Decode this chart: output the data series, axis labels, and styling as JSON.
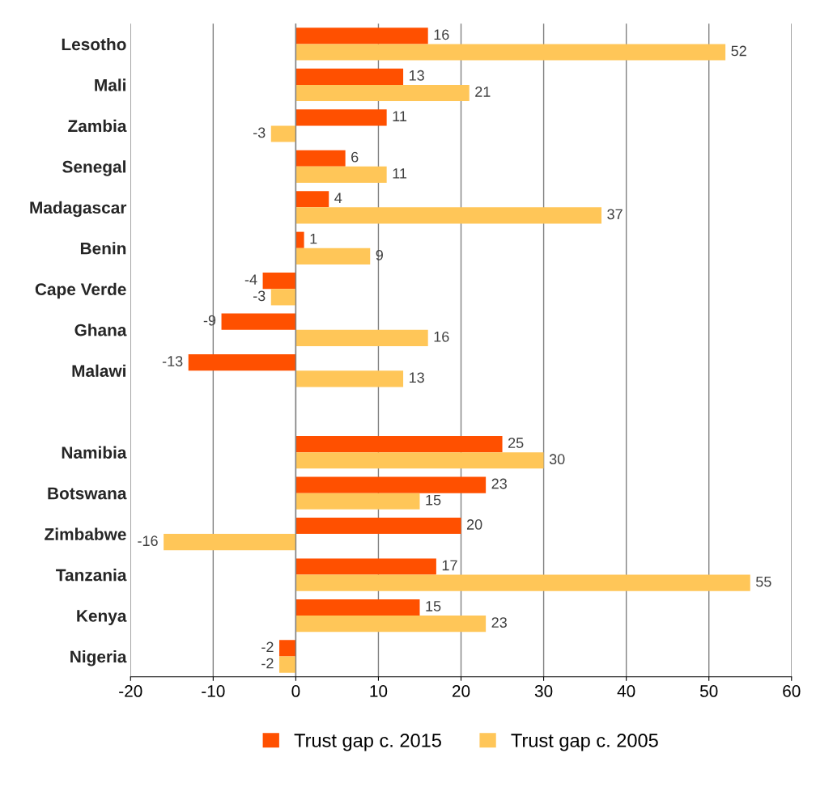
{
  "chart_data": {
    "type": "bar",
    "orientation": "horizontal",
    "categories": [
      "Lesotho",
      "Mali",
      "Zambia",
      "Senegal",
      "Madagascar",
      "Benin",
      "Cape Verde",
      "Ghana",
      "Malawi",
      null,
      "Namibia",
      "Botswana",
      "Zimbabwe",
      "Tanzania",
      "Kenya",
      "Nigeria"
    ],
    "series": [
      {
        "name": "Trust gap c. 2015",
        "color": "#ff5000",
        "values": [
          16,
          13,
          11,
          6,
          4,
          1,
          -4,
          -9,
          -13,
          null,
          25,
          23,
          20,
          17,
          15,
          -2
        ]
      },
      {
        "name": "Trust gap c. 2005",
        "color": "#ffc658",
        "values": [
          52,
          21,
          -3,
          11,
          37,
          9,
          -3,
          16,
          13,
          null,
          30,
          15,
          -16,
          55,
          23,
          -2
        ]
      }
    ],
    "xlim": [
      -20,
      60
    ],
    "xticks": [
      -20,
      -10,
      0,
      10,
      20,
      30,
      40,
      50,
      60
    ],
    "grid": "x",
    "legend": "bottom",
    "data_labels": true
  }
}
